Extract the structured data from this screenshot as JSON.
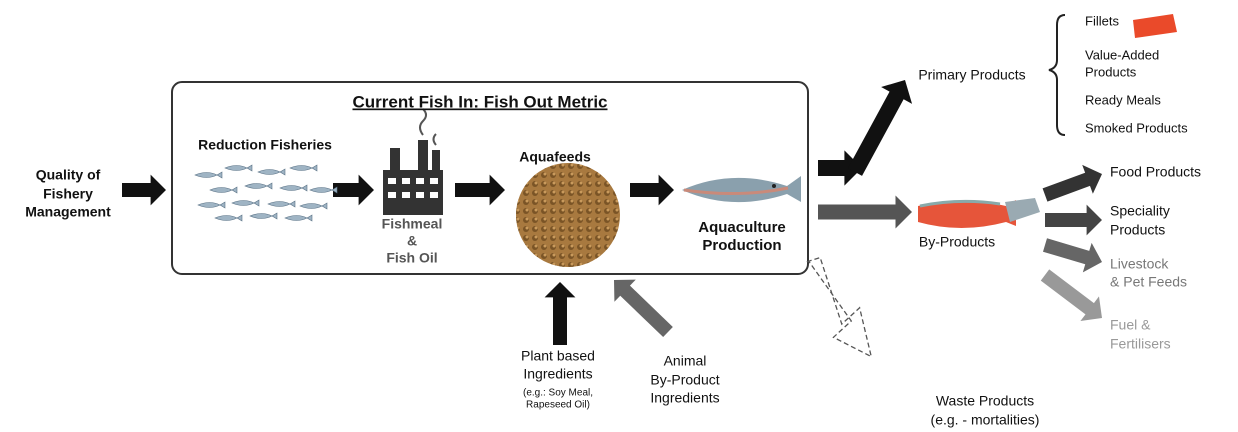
{
  "input": {
    "label": [
      "Quality of",
      "Fishery",
      "Management"
    ]
  },
  "metric_box": {
    "title": "Current Fish In: Fish Out Metric",
    "reduction_fisheries": "Reduction Fisheries",
    "fishmeal": [
      "Fishmeal",
      "&",
      "Fish Oil"
    ],
    "aquafeeds": "Aquafeeds",
    "aquaculture": [
      "Aquaculture",
      "Production"
    ]
  },
  "ingredients": {
    "plant": [
      "Plant based",
      "Ingredients"
    ],
    "plant_examples": [
      "(e.g.: Soy Meal,",
      "Rapeseed Oil)"
    ],
    "animal": [
      "Animal",
      "By-Product",
      "Ingredients"
    ]
  },
  "primary_products": {
    "label": "Primary Products",
    "items": [
      "Fillets",
      [
        "Value-Added",
        "Products"
      ],
      "Ready Meals",
      "Smoked Products"
    ]
  },
  "by_products": {
    "label": "By-Products",
    "items": [
      [
        "Food Products"
      ],
      [
        "Speciality",
        "Products"
      ],
      [
        "Livestock",
        "& Pet Feeds"
      ],
      [
        "Fuel &",
        "Fertilisers"
      ]
    ]
  },
  "waste_products": [
    "Waste Products",
    "(e.g. - mortalities)"
  ]
}
